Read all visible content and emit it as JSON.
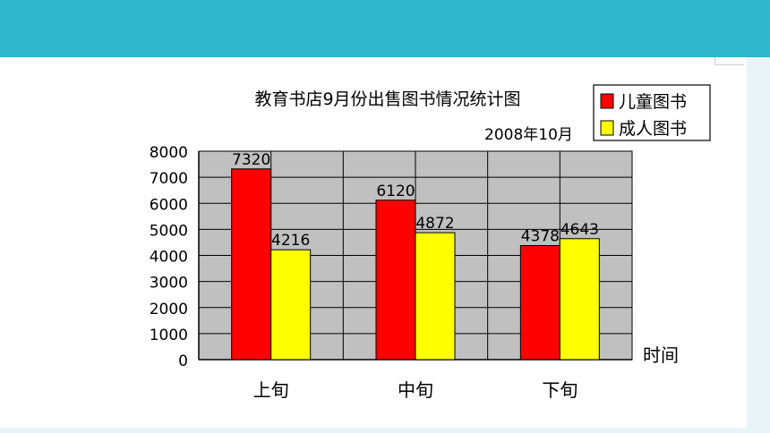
{
  "chart_data": {
    "type": "bar",
    "title": "教育书店9月份出售图书情况统计图",
    "subtitle": "2008年10月",
    "xlabel": "时间",
    "ylabel": "",
    "categories": [
      "上旬",
      "中旬",
      "下旬"
    ],
    "series": [
      {
        "name": "儿童图书",
        "values": [
          7320,
          6120,
          4378
        ],
        "color": "#ff0000"
      },
      {
        "name": "成人图书",
        "values": [
          4216,
          4872,
          4643
        ],
        "color": "#ffff00"
      }
    ],
    "ylim": [
      0,
      8000
    ],
    "yticks": [
      0,
      1000,
      2000,
      3000,
      4000,
      5000,
      6000,
      7000,
      8000
    ],
    "grid": true,
    "legend": "top-right",
    "plot_background": "#c0c0c0"
  }
}
